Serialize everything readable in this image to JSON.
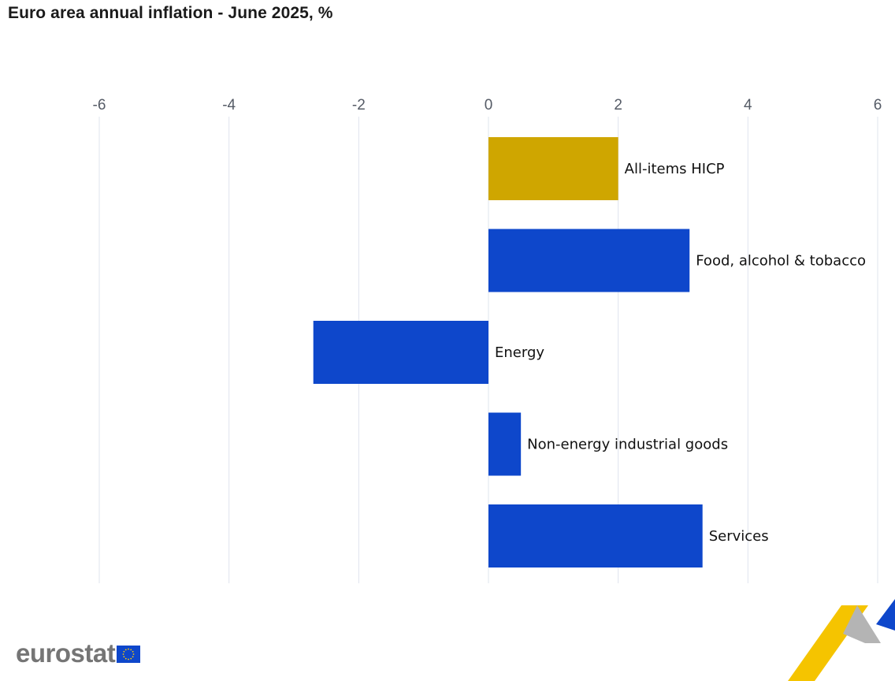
{
  "chart_data": {
    "type": "bar",
    "orientation": "horizontal",
    "title": "Euro area annual inflation - June 2025, %",
    "categories": [
      "All-items HICP",
      "Food, alcohol & tobacco",
      "Energy",
      "Non-energy industrial goods",
      "Services"
    ],
    "values": [
      2.0,
      3.1,
      -2.7,
      0.5,
      3.3
    ],
    "bar_colors": [
      "#cfa600",
      "#0e47cb",
      "#0e47cb",
      "#0e47cb",
      "#0e47cb"
    ],
    "xlim": [
      -6,
      6
    ],
    "xticks": [
      -6,
      -4,
      -2,
      0,
      2,
      4,
      6
    ],
    "xtick_labels": [
      "-6",
      "-4",
      "-2",
      "0",
      "2",
      "4",
      "6"
    ],
    "xlabel": "",
    "ylabel": "",
    "grid": true,
    "legend": "none"
  },
  "branding": {
    "logo_text": "eurostat",
    "flag_color": "#0e47cb",
    "star_color": "#ffcc00",
    "accent_yellow": "#f5c400",
    "accent_grey": "#b4b4b4",
    "accent_blue": "#0e47cb"
  }
}
